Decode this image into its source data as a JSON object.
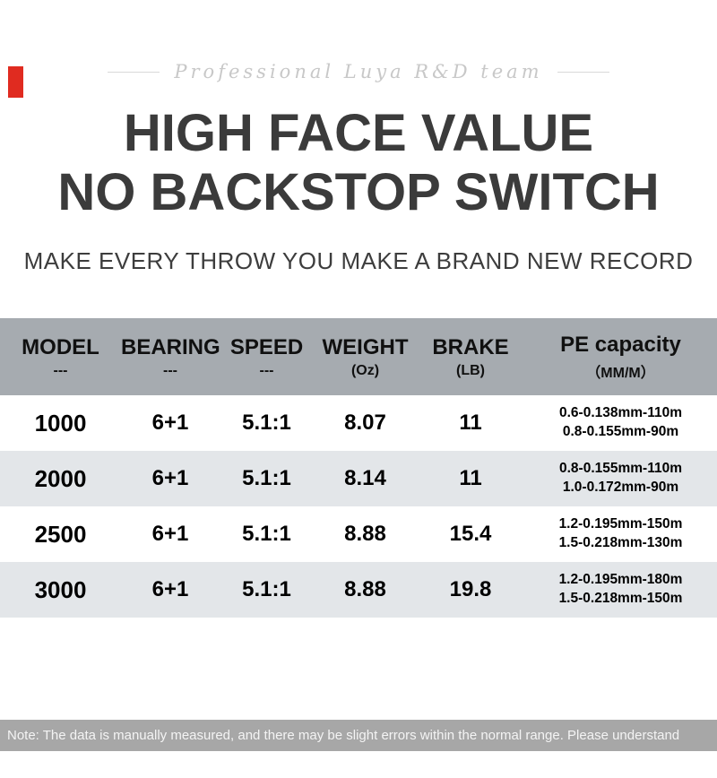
{
  "page": {
    "tagline": "Professional Luya R&D team",
    "title_line1": "HIGH FACE VALUE",
    "title_line2": "NO BACKSTOP SWITCH",
    "subtitle": "MAKE EVERY THROW YOU MAKE A BRAND NEW RECORD",
    "note": "Note: The data is manually measured, and there may be slight errors within the normal range. Please understand"
  },
  "colors": {
    "table_header_bg": "#a6abb0",
    "row_stripe_bg": "#e3e6e9",
    "footer_bg": "#a7a7a7",
    "title_color": "#3b3b3b",
    "corner_tag_red": "#e02b20"
  },
  "table": {
    "columns": [
      {
        "label": "MODEL",
        "sub": "---"
      },
      {
        "label": "BEARING",
        "sub": "---"
      },
      {
        "label": "SPEED",
        "sub": "---"
      },
      {
        "label": "WEIGHT",
        "sub": "(Oz)"
      },
      {
        "label": "BRAKE",
        "sub": "(LB)"
      },
      {
        "label": "PE capacity",
        "sub": "（MM/M）"
      }
    ],
    "rows": [
      {
        "model": "1000",
        "bearing": "6+1",
        "speed": "5.1:1",
        "weight": "8.07",
        "brake": "11",
        "pe1": "0.6-0.138mm-110m",
        "pe2": "0.8-0.155mm-90m"
      },
      {
        "model": "2000",
        "bearing": "6+1",
        "speed": "5.1:1",
        "weight": "8.14",
        "brake": "11",
        "pe1": "0.8-0.155mm-110m",
        "pe2": "1.0-0.172mm-90m"
      },
      {
        "model": "2500",
        "bearing": "6+1",
        "speed": "5.1:1",
        "weight": "8.88",
        "brake": "15.4",
        "pe1": "1.2-0.195mm-150m",
        "pe2": "1.5-0.218mm-130m"
      },
      {
        "model": "3000",
        "bearing": "6+1",
        "speed": "5.1:1",
        "weight": "8.88",
        "brake": "19.8",
        "pe1": "1.2-0.195mm-180m",
        "pe2": "1.5-0.218mm-150m"
      }
    ]
  }
}
